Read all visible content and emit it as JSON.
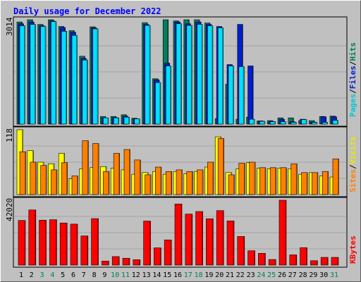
{
  "chart_data": {
    "type": "bar",
    "title": "Daily usage for December 2022",
    "categories": [
      "1",
      "2",
      "3",
      "4",
      "5",
      "6",
      "7",
      "8",
      "9",
      "10",
      "11",
      "12",
      "13",
      "14",
      "15",
      "16",
      "17",
      "18",
      "19",
      "20",
      "21",
      "22",
      "23",
      "24",
      "25",
      "26",
      "27",
      "28",
      "29",
      "30",
      "31"
    ],
    "weekend_days": [
      "3",
      "4",
      "10",
      "11",
      "17",
      "18",
      "24",
      "25",
      "31"
    ],
    "panels": [
      {
        "name": "requests",
        "ymax_label": "3014",
        "ylim": [
          0,
          3014
        ],
        "legend": [
          "Pages",
          "/",
          "Files",
          "/",
          "Hits"
        ],
        "series": [
          {
            "name": "Hits",
            "color": "#00805c",
            "values": [
              2950,
              3014,
              2880,
              3014,
              2820,
              2700,
              1960,
              2810,
              220,
              220,
              270,
              170,
              2930,
              1310,
              3014,
              2980,
              3014,
              3014,
              2920,
              160,
              1150,
              140,
              200,
              90,
              100,
              180,
              180,
              100,
              100,
              220,
              230
            ]
          },
          {
            "name": "Files",
            "color": "#0020d0",
            "values": [
              2900,
              2950,
              2840,
              2980,
              2790,
              2650,
              1900,
              2780,
              180,
              190,
              230,
              150,
              2880,
              1280,
              1760,
              2950,
              2900,
              2950,
              2880,
              2820,
              1720,
              2880,
              1680,
              90,
              80,
              140,
              70,
              140,
              60,
              210,
              210
            ]
          },
          {
            "name": "Pages",
            "color": "#00e0ff",
            "values": [
              2840,
              2880,
              2820,
              2960,
              2680,
              2560,
              1850,
              2750,
              180,
              180,
              200,
              150,
              2850,
              1200,
              1680,
              2900,
              2850,
              2880,
              2840,
              2780,
              1680,
              1660,
              140,
              80,
              70,
              70,
              50,
              130,
              50,
              50,
              110
            ]
          }
        ]
      },
      {
        "name": "visitors",
        "ymax_label": "118",
        "ylim": [
          0,
          118
        ],
        "legend": [
          "Sites",
          "/",
          "Visits"
        ],
        "series": [
          {
            "name": "Visits",
            "color": "#ffff00",
            "values": [
              118,
              80,
              59,
              56,
              75,
              29,
              47,
              49,
              51,
              48,
              45,
              37,
              40,
              42,
              37,
              42,
              38,
              42,
              50,
              105,
              40,
              47,
              58,
              48,
              47,
              48,
              47,
              37,
              40,
              34,
              32
            ]
          },
          {
            "name": "Sites",
            "color": "#ff8000",
            "values": [
              78,
              59,
              53,
              45,
              58,
              34,
              98,
              93,
              42,
              75,
              82,
              63,
              36,
              50,
              42,
              45,
              42,
              45,
              59,
              102,
              36,
              57,
              59,
              49,
              49,
              49,
              56,
              40,
              40,
              42,
              65
            ]
          }
        ]
      },
      {
        "name": "kbytes",
        "ymax_label": "42020",
        "ylim": [
          0,
          42020
        ],
        "legend": [
          "KBytes"
        ],
        "series": [
          {
            "name": "KBytes",
            "color": "#ff0000",
            "values": [
              28920,
              35720,
              29110,
              29400,
              27240,
              26540,
              18880,
              30110,
              2600,
              5510,
              4440,
              3500,
              28510,
              11180,
              16310,
              39580,
              33040,
              34710,
              30010,
              35300,
              28620,
              18540,
              9280,
              7630,
              3620,
              42020,
              6620,
              11290,
              2830,
              5000,
              5000
            ]
          }
        ]
      }
    ]
  }
}
